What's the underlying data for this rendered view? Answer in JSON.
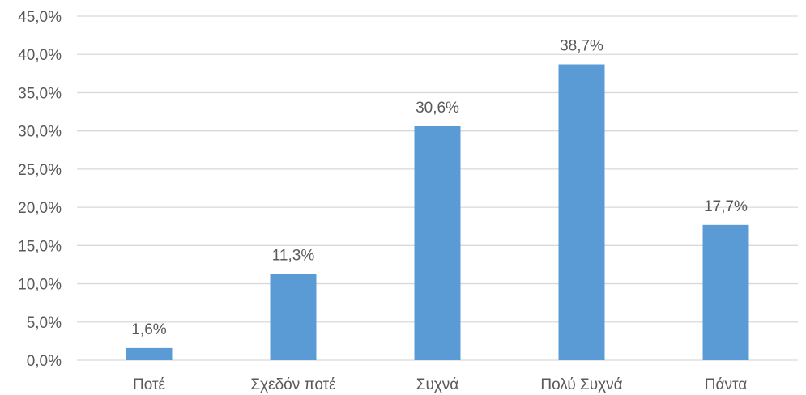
{
  "chart_data": {
    "type": "bar",
    "categories": [
      "Ποτέ",
      "Σχεδόν ποτέ",
      "Συχνά",
      "Πολύ Συχνά",
      "Πάντα"
    ],
    "values": [
      1.6,
      11.3,
      30.6,
      38.7,
      17.7
    ],
    "data_labels": [
      "1,6%",
      "11,3%",
      "30,6%",
      "38,7%",
      "17,7%"
    ],
    "y_ticks": [
      0,
      5,
      10,
      15,
      20,
      25,
      30,
      35,
      40,
      45
    ],
    "y_tick_labels": [
      "0,0%",
      "5,0%",
      "10,0%",
      "15,0%",
      "20,0%",
      "25,0%",
      "30,0%",
      "35,0%",
      "40,0%",
      "45,0%"
    ],
    "ylim": [
      0,
      45
    ],
    "grid": true,
    "legend": "none",
    "bar_color": "#5b9bd5",
    "title": "",
    "xlabel": "",
    "ylabel": ""
  }
}
